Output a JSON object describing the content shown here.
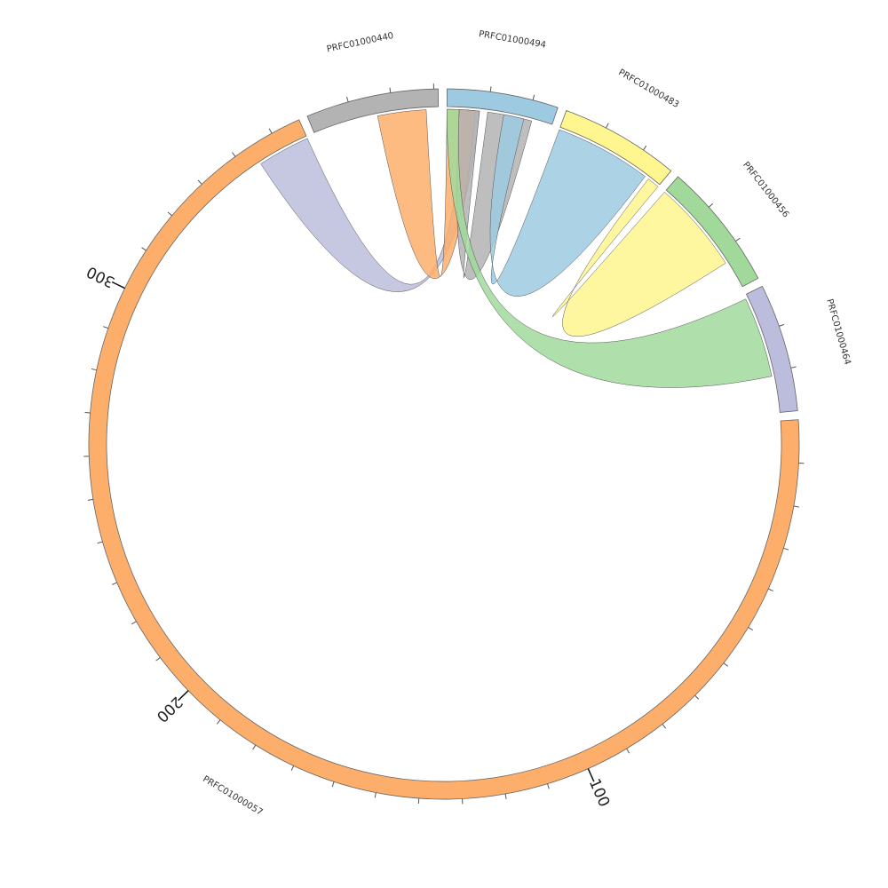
{
  "chart_data": {
    "type": "chord",
    "segments": [
      {
        "name": "PRFC01000494",
        "length": 26,
        "color": "#9ecae1"
      },
      {
        "name": "PRFC01000483",
        "length": 28,
        "color": "#fff68f"
      },
      {
        "name": "PRFC01000456",
        "length": 30,
        "color": "#a1d99b"
      },
      {
        "name": "PRFC01000464",
        "length": 30,
        "color": "#bcbddc"
      },
      {
        "name": "PRFC01000057",
        "length": 357,
        "color": "#fdae6b",
        "ticks": [
          100,
          200,
          300
        ]
      },
      {
        "name": "PRFC01000440",
        "length": 31,
        "color": "#b3b3b3"
      }
    ],
    "minor_tick_interval": 10,
    "links": [
      {
        "from": {
          "segment": "PRFC01000057",
          "start": 344,
          "end": 357
        },
        "to": {
          "segment": "PRFC01000494",
          "start": 4,
          "end": 8
        },
        "color": "#bcbddc"
      },
      {
        "from": {
          "segment": "PRFC01000440",
          "start": 16,
          "end": 28
        },
        "to": {
          "segment": "PRFC01000494",
          "start": 0,
          "end": 7
        },
        "color": "#fdae6b"
      },
      {
        "from": {
          "segment": "PRFC01000494",
          "start": 10,
          "end": 21
        },
        "to": {
          "segment": "PRFC01000494",
          "start": 3,
          "end": 8
        },
        "color": "#b3b3b3"
      },
      {
        "from": {
          "segment": "PRFC01000483",
          "start": 0,
          "end": 24
        },
        "to": {
          "segment": "PRFC01000494",
          "start": 14,
          "end": 19
        },
        "color": "#9ecae1"
      },
      {
        "from": {
          "segment": "PRFC01000456",
          "start": 0,
          "end": 23
        },
        "to": {
          "segment": "PRFC01000483",
          "start": 25,
          "end": 28
        },
        "color": "#fff68f"
      },
      {
        "from": {
          "segment": "PRFC01000464",
          "start": 1,
          "end": 21
        },
        "to": {
          "segment": "PRFC01000494",
          "start": 0,
          "end": 3
        },
        "color": "#a1d99b"
      }
    ]
  }
}
